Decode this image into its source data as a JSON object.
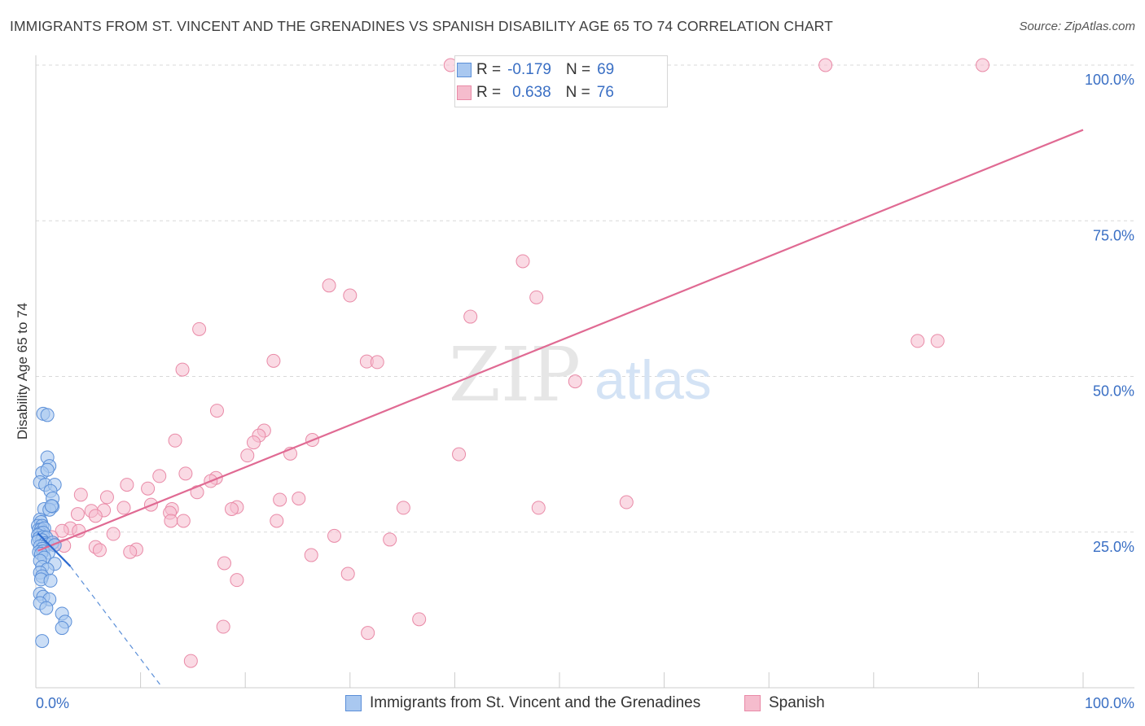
{
  "title": "IMMIGRANTS FROM ST. VINCENT AND THE GRENADINES VS SPANISH DISABILITY AGE 65 TO 74 CORRELATION CHART",
  "source": "Source: ZipAtlas.com",
  "watermark": {
    "zip": "ZIP",
    "atlas": "atlas"
  },
  "legend": {
    "rows": [
      {
        "r_label": "R =",
        "r_value": "-0.179",
        "n_label": "N =",
        "n_value": "69"
      },
      {
        "r_label": "R =",
        "r_value": "0.638",
        "n_label": "N =",
        "n_value": "76"
      }
    ]
  },
  "bottom_legend": {
    "series1": "Immigrants from St. Vincent and the Grenadines",
    "series2": "Spanish"
  },
  "colors": {
    "blue_fill": "#a9c8f0",
    "blue_stroke": "#5b8fd8",
    "blue_line": "#2e6bd0",
    "pink_fill": "#f5bccd",
    "pink_stroke": "#e98aa7",
    "pink_line": "#e06a93",
    "axis_label": "#3a6fc4",
    "grid": "#d9d9d9"
  },
  "chart_data": {
    "type": "scatter",
    "title": "IMMIGRANTS FROM ST. VINCENT AND THE GRENADINES VS SPANISH DISABILITY AGE 65 TO 74 CORRELATION CHART",
    "xlabel": "",
    "ylabel": "Disability Age 65 to 74",
    "xlim": [
      0,
      100
    ],
    "ylim": [
      0,
      100
    ],
    "x_tick_labels": [
      "0.0%",
      "100.0%"
    ],
    "y_tick_labels": [
      "100.0%",
      "75.0%",
      "50.0%",
      "25.0%"
    ],
    "y_ticks": [
      100,
      75,
      50,
      25
    ],
    "grid": true,
    "legend_position": "top-center",
    "series": [
      {
        "name": "Immigrants from St. Vincent and the Grenadines",
        "color": "#a9c8f0",
        "trend": {
          "x": [
            0.2,
            3.3
          ],
          "y": [
            24.8,
            19.5
          ],
          "dashed_to": [
            12.0,
            0.2
          ]
        },
        "points": [
          [
            0.7,
            44.0
          ],
          [
            1.1,
            43.8
          ],
          [
            1.1,
            37.0
          ],
          [
            1.3,
            35.6
          ],
          [
            0.6,
            34.5
          ],
          [
            1.1,
            35.0
          ],
          [
            0.4,
            33.0
          ],
          [
            0.9,
            32.6
          ],
          [
            1.8,
            32.6
          ],
          [
            1.4,
            31.6
          ],
          [
            1.6,
            30.4
          ],
          [
            0.8,
            28.7
          ],
          [
            1.6,
            29.1
          ],
          [
            1.3,
            28.6
          ],
          [
            1.5,
            29.2
          ],
          [
            0.4,
            27.0
          ],
          [
            0.5,
            26.6
          ],
          [
            0.2,
            26.0
          ],
          [
            0.6,
            26.0
          ],
          [
            0.3,
            25.4
          ],
          [
            0.5,
            25.4
          ],
          [
            0.8,
            25.6
          ],
          [
            0.4,
            24.8
          ],
          [
            0.7,
            24.9
          ],
          [
            0.2,
            24.5
          ],
          [
            0.3,
            24.0
          ],
          [
            0.7,
            24.2
          ],
          [
            1.0,
            24.1
          ],
          [
            0.6,
            23.7
          ],
          [
            0.2,
            23.5
          ],
          [
            0.9,
            23.2
          ],
          [
            1.1,
            23.0
          ],
          [
            1.6,
            23.3
          ],
          [
            1.8,
            22.9
          ],
          [
            0.4,
            22.7
          ],
          [
            0.6,
            22.3
          ],
          [
            0.3,
            21.8
          ],
          [
            0.7,
            21.9
          ],
          [
            1.2,
            21.7
          ],
          [
            0.5,
            21.5
          ],
          [
            0.8,
            20.9
          ],
          [
            0.4,
            20.4
          ],
          [
            1.8,
            19.9
          ],
          [
            0.6,
            19.4
          ],
          [
            1.1,
            19.0
          ],
          [
            0.4,
            18.5
          ],
          [
            0.6,
            17.9
          ],
          [
            0.5,
            17.4
          ],
          [
            1.4,
            17.2
          ],
          [
            0.4,
            15.1
          ],
          [
            0.7,
            14.6
          ],
          [
            1.3,
            14.2
          ],
          [
            0.4,
            13.6
          ],
          [
            1.0,
            12.8
          ],
          [
            2.5,
            11.9
          ],
          [
            2.8,
            10.6
          ],
          [
            2.5,
            9.6
          ],
          [
            0.6,
            7.5
          ]
        ]
      },
      {
        "name": "Spanish",
        "color": "#f5bccd",
        "trend": {
          "x": [
            0.2,
            100.0
          ],
          "y": [
            22.0,
            89.6
          ]
        },
        "points": [
          [
            39.6,
            100.0
          ],
          [
            52.4,
            100.0
          ],
          [
            75.4,
            100.0
          ],
          [
            90.4,
            100.0
          ],
          [
            46.5,
            68.5
          ],
          [
            28.0,
            64.6
          ],
          [
            30.0,
            63.0
          ],
          [
            47.8,
            62.7
          ],
          [
            41.5,
            59.6
          ],
          [
            15.6,
            57.6
          ],
          [
            84.2,
            55.7
          ],
          [
            86.1,
            55.7
          ],
          [
            22.7,
            52.5
          ],
          [
            31.6,
            52.4
          ],
          [
            32.6,
            52.3
          ],
          [
            14.0,
            51.1
          ],
          [
            51.5,
            49.2
          ],
          [
            17.3,
            44.5
          ],
          [
            21.8,
            41.3
          ],
          [
            21.3,
            40.5
          ],
          [
            20.8,
            39.4
          ],
          [
            13.3,
            39.7
          ],
          [
            26.4,
            39.8
          ],
          [
            20.2,
            37.3
          ],
          [
            24.3,
            37.6
          ],
          [
            40.4,
            37.5
          ],
          [
            14.3,
            34.4
          ],
          [
            11.8,
            34.0
          ],
          [
            17.2,
            33.7
          ],
          [
            16.7,
            33.2
          ],
          [
            8.7,
            32.6
          ],
          [
            10.7,
            32.0
          ],
          [
            15.4,
            31.4
          ],
          [
            4.3,
            31.0
          ],
          [
            6.8,
            30.6
          ],
          [
            23.3,
            30.2
          ],
          [
            25.1,
            30.4
          ],
          [
            11.0,
            29.4
          ],
          [
            19.2,
            29.0
          ],
          [
            8.4,
            28.9
          ],
          [
            18.7,
            28.7
          ],
          [
            13.0,
            28.7
          ],
          [
            5.3,
            28.4
          ],
          [
            6.5,
            28.5
          ],
          [
            35.1,
            28.9
          ],
          [
            48.0,
            28.9
          ],
          [
            56.4,
            29.8
          ],
          [
            4.0,
            27.9
          ],
          [
            12.8,
            28.1
          ],
          [
            5.7,
            27.6
          ],
          [
            12.9,
            26.8
          ],
          [
            23.0,
            26.8
          ],
          [
            14.1,
            26.8
          ],
          [
            3.3,
            25.6
          ],
          [
            2.5,
            25.2
          ],
          [
            4.1,
            25.2
          ],
          [
            7.4,
            24.7
          ],
          [
            1.5,
            24.2
          ],
          [
            28.5,
            24.4
          ],
          [
            33.8,
            23.8
          ],
          [
            1.8,
            23.0
          ],
          [
            2.7,
            22.8
          ],
          [
            5.7,
            22.6
          ],
          [
            6.1,
            22.1
          ],
          [
            9.6,
            22.2
          ],
          [
            9.0,
            21.8
          ],
          [
            26.3,
            21.3
          ],
          [
            18.0,
            20.0
          ],
          [
            29.8,
            18.3
          ],
          [
            19.2,
            17.3
          ],
          [
            17.9,
            9.8
          ],
          [
            31.7,
            8.8
          ],
          [
            36.6,
            11.0
          ],
          [
            14.8,
            4.3
          ]
        ]
      }
    ]
  }
}
